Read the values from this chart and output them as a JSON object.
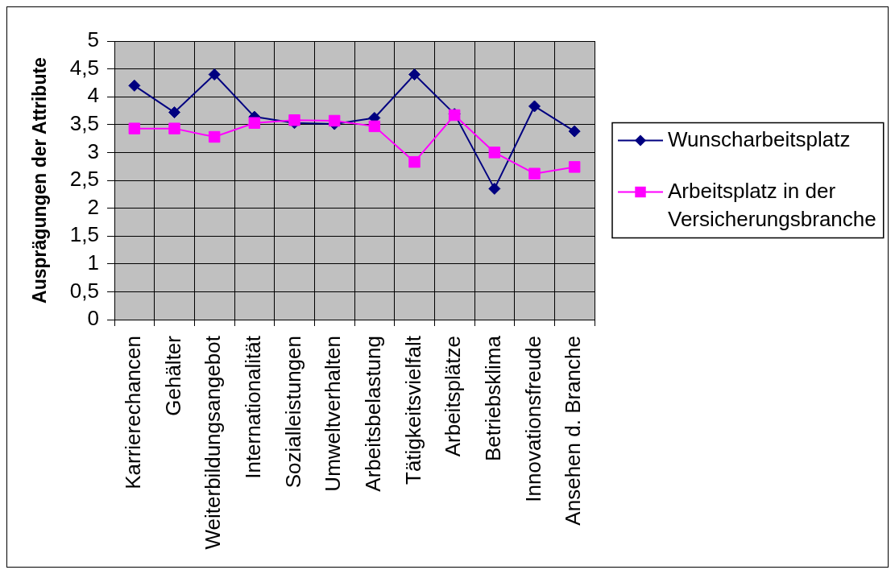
{
  "chart_data": {
    "type": "line",
    "ylabel": "Ausprägungen der Attribute",
    "categories": [
      "Karrierechancen",
      "Gehälter",
      "Weiterbildungsangebot",
      "Internationalität",
      "Sozialleistungen",
      "Umweltverhalten",
      "Arbeitsbelastung",
      "Tätigkeitsvielfalt",
      "Arbeitsplätze",
      "Betriebsklima",
      "Innovationsfreude",
      "Ansehen d. Branche"
    ],
    "series": [
      {
        "name": "Wunscharbeitsplatz",
        "color": "#000080",
        "marker": "diamond",
        "values": [
          4.2,
          3.72,
          4.4,
          3.64,
          3.53,
          3.51,
          3.62,
          4.4,
          3.69,
          2.35,
          3.83,
          3.38
        ]
      },
      {
        "name": "Arbeitsplatz in der Versicherungsbranche",
        "color": "#ff00ff",
        "marker": "square",
        "values": [
          3.43,
          3.43,
          3.28,
          3.53,
          3.58,
          3.57,
          3.47,
          2.83,
          3.67,
          3.0,
          2.62,
          2.74
        ]
      }
    ],
    "ylim": [
      0,
      5
    ],
    "yticks": [
      0,
      {
        "value": 0.5,
        "label": "0,5"
      },
      1,
      {
        "value": 1.5,
        "label": "1,5"
      },
      2,
      {
        "value": 2.5,
        "label": "2,5"
      },
      3,
      {
        "value": 3.5,
        "label": "3,5"
      },
      4,
      {
        "value": 4.5,
        "label": "4,5"
      },
      5
    ],
    "grid": true,
    "legend": "right",
    "line_style": "solid"
  }
}
